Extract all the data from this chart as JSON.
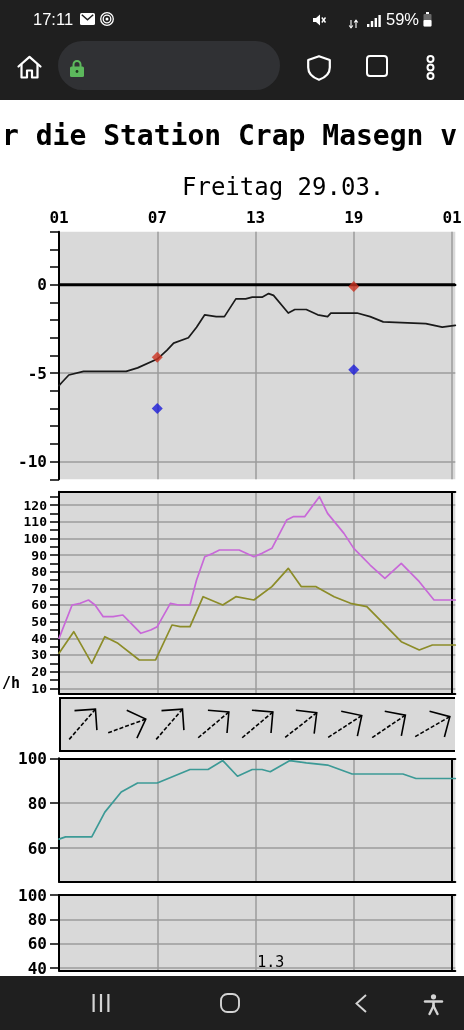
{
  "chart_data": [
    {
      "type": "other",
      "annotations": [
        "17:11",
        "59%"
      ]
    },
    {
      "type": "line",
      "title": "r die Station Crap Masegn v",
      "subtitle": "Freitag 29.03.",
      "xlim": [
        "--03-29T01:00",
        "--03-30T01:12"
      ],
      "xticks": [
        {
          "value": "--03-29T01:00",
          "label": "01"
        },
        {
          "value": "--03-29T07:00",
          "label": "07"
        },
        {
          "value": "--03-29T13:00",
          "label": "13"
        },
        {
          "value": "--03-29T19:00",
          "label": "19"
        },
        {
          "value": "--03-30T01:00",
          "label": "01"
        }
      ],
      "ylim": [
        -11,
        3
      ],
      "yticks": [
        {
          "value": -11,
          "label": null
        },
        -10,
        {
          "value": -9,
          "label": null
        },
        {
          "value": -8,
          "label": null
        },
        {
          "value": -7,
          "label": null
        },
        {
          "value": -6,
          "label": null
        },
        -5,
        {
          "value": -4,
          "label": null
        },
        {
          "value": -3,
          "label": null
        },
        {
          "value": -2,
          "label": null
        },
        {
          "value": -1,
          "label": null
        },
        0,
        {
          "value": 1,
          "label": null
        },
        {
          "value": 2,
          "label": null
        },
        {
          "value": 3,
          "label": null
        }
      ],
      "grid": true,
      "ref_lines": [
        {
          "axis": "y",
          "value": 0,
          "color": "#000000"
        }
      ],
      "series": [
        {
          "color": "#1a1a1a",
          "x": [
            "--03-29T01:00",
            "--03-29T01:12",
            "--03-29T01:36",
            "--03-29T02:30",
            "--03-29T05:06",
            "--03-29T05:48",
            "--03-29T07:00",
            "--03-29T07:36",
            "--03-29T08:00",
            "--03-29T08:54",
            "--03-29T09:24",
            "--03-29T09:54",
            "--03-29T10:36",
            "--03-29T11:06",
            "--03-29T11:48",
            "--03-29T12:24",
            "--03-29T12:48",
            "--03-29T13:24",
            "--03-29T13:48",
            "--03-29T14:06",
            "--03-29T15:00",
            "--03-29T15:24",
            "--03-29T16:06",
            "--03-29T16:48",
            "--03-29T17:24",
            "--03-29T17:36",
            "--03-29T19:12",
            "--03-29T20:00",
            "--03-29T20:48",
            "--03-29T23:24",
            "--03-30T00:24",
            "--03-30T01:12"
          ],
          "values": [
            -5.7,
            -5.5,
            -5.1,
            -4.9,
            -4.9,
            -4.7,
            -4.2,
            -3.7,
            -3.3,
            -3.0,
            -2.4,
            -1.7,
            -1.8,
            -1.8,
            -0.8,
            -0.8,
            -0.7,
            -0.7,
            -0.5,
            -0.6,
            -1.6,
            -1.4,
            -1.4,
            -1.7,
            -1.8,
            -1.6,
            -1.6,
            -1.8,
            -2.1,
            -2.2,
            -2.4,
            -2.3
          ]
        },
        {
          "type": "scatter",
          "marker": "diamond",
          "color": "#cc3322",
          "x": [
            "--03-29T07:00",
            "--03-29T19:00"
          ],
          "values": [
            -4.1,
            -0.1
          ]
        },
        {
          "type": "scatter",
          "marker": "diamond",
          "color": "#1a1ad8",
          "x": [
            "--03-29T07:00",
            "--03-29T19:00"
          ],
          "values": [
            -7.0,
            -4.8
          ]
        }
      ]
    },
    {
      "type": "line",
      "ylabel": "/h",
      "xlim": [
        "--03-29T01:00",
        "--03-30T01:12"
      ],
      "xticks": [
        {
          "value": "--03-29T01:00",
          "label": "01"
        },
        {
          "value": "--03-29T07:00",
          "label": "07"
        },
        {
          "value": "--03-29T13:00",
          "label": "13"
        },
        {
          "value": "--03-29T19:00",
          "label": "19"
        },
        {
          "value": "--03-30T01:00",
          "label": "01"
        }
      ],
      "tick_labels": "y",
      "ylim": [
        7,
        128
      ],
      "yticks": [
        10,
        {
          "value": 15,
          "label": null
        },
        20,
        {
          "value": 25,
          "label": null
        },
        30,
        {
          "value": 35,
          "label": null
        },
        40,
        {
          "value": 45,
          "label": null
        },
        50,
        {
          "value": 55,
          "label": null
        },
        60,
        {
          "value": 65,
          "label": null
        },
        70,
        {
          "value": 75,
          "label": null
        },
        80,
        {
          "value": 85,
          "label": null
        },
        90,
        {
          "value": 95,
          "label": null
        },
        100,
        {
          "value": 105,
          "label": null
        },
        110,
        {
          "value": 115,
          "label": null
        },
        120,
        {
          "value": 125,
          "label": null
        }
      ],
      "grid": true,
      "ref_lines": [
        {
          "axis": "x",
          "value": "--03-30T01:00",
          "color": "#000000"
        }
      ],
      "series": [
        {
          "color": "#c868d8",
          "x": [
            "--03-29T01:00",
            "--03-29T01:48",
            "--03-29T02:18",
            "--03-29T02:48",
            "--03-29T03:12",
            "--03-29T03:42",
            "--03-29T04:18",
            "--03-29T04:54",
            "--03-29T05:24",
            "--03-29T06:00",
            "--03-29T06:36",
            "--03-29T07:00",
            "--03-29T07:48",
            "--03-29T08:18",
            "--03-29T09:00",
            "--03-29T09:24",
            "--03-29T09:54",
            "--03-29T10:24",
            "--03-29T10:48",
            "--03-29T12:00",
            "--03-29T12:54",
            "--03-29T13:24",
            "--03-29T14:00",
            "--03-29T14:54",
            "--03-29T15:18",
            "--03-29T16:00",
            "--03-29T16:54",
            "--03-29T17:24",
            "--03-29T18:24",
            "--03-29T19:00",
            "--03-29T20:00",
            "--03-29T20:54",
            "--03-29T21:54",
            "--03-29T23:00",
            "--03-29T23:54",
            "--03-30T01:12"
          ],
          "values": [
            40,
            60,
            61,
            63,
            60,
            53,
            53,
            54,
            49,
            43,
            45,
            47,
            61,
            60,
            60,
            75,
            89,
            91,
            93,
            93,
            89,
            91,
            94,
            111,
            113,
            113,
            125,
            115,
            103,
            94,
            84,
            76,
            85,
            74,
            63,
            63
          ]
        },
        {
          "color": "#8c8c28",
          "x": [
            "--03-29T01:00",
            "--03-29T01:54",
            "--03-29T03:00",
            "--03-29T03:48",
            "--03-29T04:36",
            "--03-29T05:54",
            "--03-29T06:54",
            "--03-29T07:54",
            "--03-29T08:24",
            "--03-29T09:00",
            "--03-29T09:48",
            "--03-29T11:00",
            "--03-29T11:48",
            "--03-29T12:54",
            "--03-29T14:00",
            "--03-29T15:00",
            "--03-29T15:48",
            "--03-29T16:42",
            "--03-29T17:48",
            "--03-29T18:48",
            "--03-29T19:48",
            "--03-29T20:42",
            "--03-29T21:54",
            "--03-29T23:00",
            "--03-29T23:48",
            "--03-30T01:12"
          ],
          "values": [
            31,
            44,
            25,
            41,
            37,
            27,
            27,
            48,
            47,
            47,
            65,
            60,
            65,
            63,
            71,
            82,
            71,
            71,
            65,
            61,
            59,
            50,
            38,
            33,
            36,
            36
          ]
        }
      ]
    },
    {
      "type": "line",
      "xlim": [
        "--03-29T01:00",
        "--03-30T01:12"
      ],
      "xticks": [
        {
          "value": "--03-29T01:00",
          "label": "01"
        },
        {
          "value": "--03-29T07:00",
          "label": "07"
        },
        {
          "value": "--03-29T13:00",
          "label": "13"
        },
        {
          "value": "--03-29T19:00",
          "label": "19"
        },
        {
          "value": "--03-30T01:00",
          "label": "01"
        }
      ],
      "tick_labels": "y",
      "ylim": [
        45,
        100
      ],
      "yticks": [
        60,
        80,
        100
      ],
      "grid": true,
      "ref_lines": [
        {
          "axis": "x",
          "value": "--03-30T01:00",
          "color": "#000000"
        }
      ],
      "series": [
        {
          "color": "#3c9a96",
          "x": [
            "--03-29T01:00",
            "--03-29T01:24",
            "--03-29T03:00",
            "--03-29T03:48",
            "--03-29T04:48",
            "--03-29T05:48",
            "--03-29T07:00",
            "--03-29T08:00",
            "--03-29T09:00",
            "--03-29T10:06",
            "--03-29T11:00",
            "--03-29T11:54",
            "--03-29T12:48",
            "--03-29T13:24",
            "--03-29T13:54",
            "--03-29T15:06",
            "--03-29T16:06",
            "--03-29T17:24",
            "--03-29T18:54",
            "--03-29T22:00",
            "--03-29T22:48",
            "--03-30T01:12"
          ],
          "values": [
            64,
            65,
            65,
            76,
            85,
            89,
            89,
            92,
            95,
            95,
            99,
            92,
            95,
            95,
            94,
            99,
            98,
            97,
            93,
            93,
            91,
            91
          ]
        }
      ]
    },
    {
      "type": "line",
      "xlim": [
        "--03-29T01:00",
        "--03-30T01:12"
      ],
      "xticks": [
        {
          "value": "--03-29T01:00",
          "label": "01"
        },
        {
          "value": "--03-29T07:00",
          "label": "07"
        },
        {
          "value": "--03-29T13:00",
          "label": "13"
        },
        {
          "value": "--03-29T19:00",
          "label": "19"
        },
        {
          "value": "--03-30T01:00",
          "label": "01"
        }
      ],
      "tick_labels": "y",
      "ylim": [
        38,
        100
      ],
      "yticks": [
        40,
        60,
        80,
        100
      ],
      "grid": true,
      "ref_lines": [
        {
          "axis": "x",
          "value": "--03-30T01:00",
          "color": "#000000"
        }
      ],
      "annotations": [
        "1.3"
      ]
    }
  ]
}
